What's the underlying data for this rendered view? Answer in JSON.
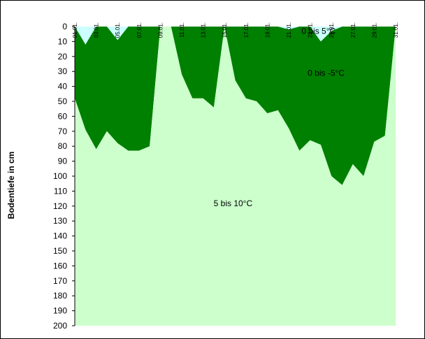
{
  "chart_data": {
    "type": "area",
    "ylabel": "Bodentiefe in cm",
    "y_axis_inverted": true,
    "ylim": [
      0,
      200
    ],
    "yticks": [
      0,
      10,
      20,
      30,
      40,
      50,
      60,
      70,
      80,
      90,
      100,
      110,
      120,
      130,
      140,
      150,
      160,
      170,
      180,
      190,
      200
    ],
    "x_tick_labels": [
      "01.01.",
      "03.01.",
      "05.01.",
      "07.01.",
      "09.01.",
      "11.01.",
      "13.01.",
      "15.01.",
      "17.01.",
      "19.01.",
      "21.01.",
      "23.01.",
      "25.01.",
      "27.01.",
      "29.01.",
      "31.01."
    ],
    "x_day_range": [
      1,
      31
    ],
    "x": [
      1,
      2,
      3,
      4,
      5,
      6,
      7,
      8,
      9,
      10,
      11,
      12,
      13,
      14,
      15,
      16,
      17,
      18,
      19,
      20,
      21,
      22,
      23,
      24,
      25,
      26,
      27,
      28,
      29,
      30,
      31
    ],
    "series": [
      {
        "name": "0 bis 5°C",
        "color": "#ccffff",
        "lower_boundary_cm": [
          0,
          12,
          0,
          0,
          9,
          0,
          0,
          0,
          0,
          0,
          0,
          0,
          0,
          0,
          0,
          0,
          0,
          0,
          0,
          0,
          2,
          0,
          0,
          10,
          3,
          0,
          0,
          0,
          0,
          0,
          0
        ]
      },
      {
        "name": "0 bis -5°C",
        "color": "#008000",
        "lower_boundary_cm": [
          48,
          69,
          82,
          70,
          78,
          83,
          83,
          80,
          0,
          0,
          32,
          48,
          48,
          54,
          0,
          36,
          48,
          50,
          58,
          56,
          68,
          83,
          76,
          79,
          100,
          106,
          92,
          100,
          77,
          73,
          0
        ]
      },
      {
        "name": "5 bis 10°C",
        "color": "#ccffcc",
        "lower_boundary_cm": [
          200,
          200,
          200,
          200,
          200,
          200,
          200,
          200,
          200,
          200,
          200,
          200,
          200,
          200,
          200,
          200,
          200,
          200,
          200,
          200,
          200,
          200,
          200,
          200,
          200,
          200,
          200,
          200,
          200,
          200,
          200
        ]
      }
    ],
    "annotations": [
      {
        "text": "0 bis 5°C",
        "day": 23.8,
        "depth_cm": 5
      },
      {
        "text": "0 bis -5°C",
        "day": 24.5,
        "depth_cm": 33
      },
      {
        "text": "5 bis 10°C",
        "day": 15.8,
        "depth_cm": 120
      }
    ],
    "grid": false,
    "legend": "none"
  }
}
